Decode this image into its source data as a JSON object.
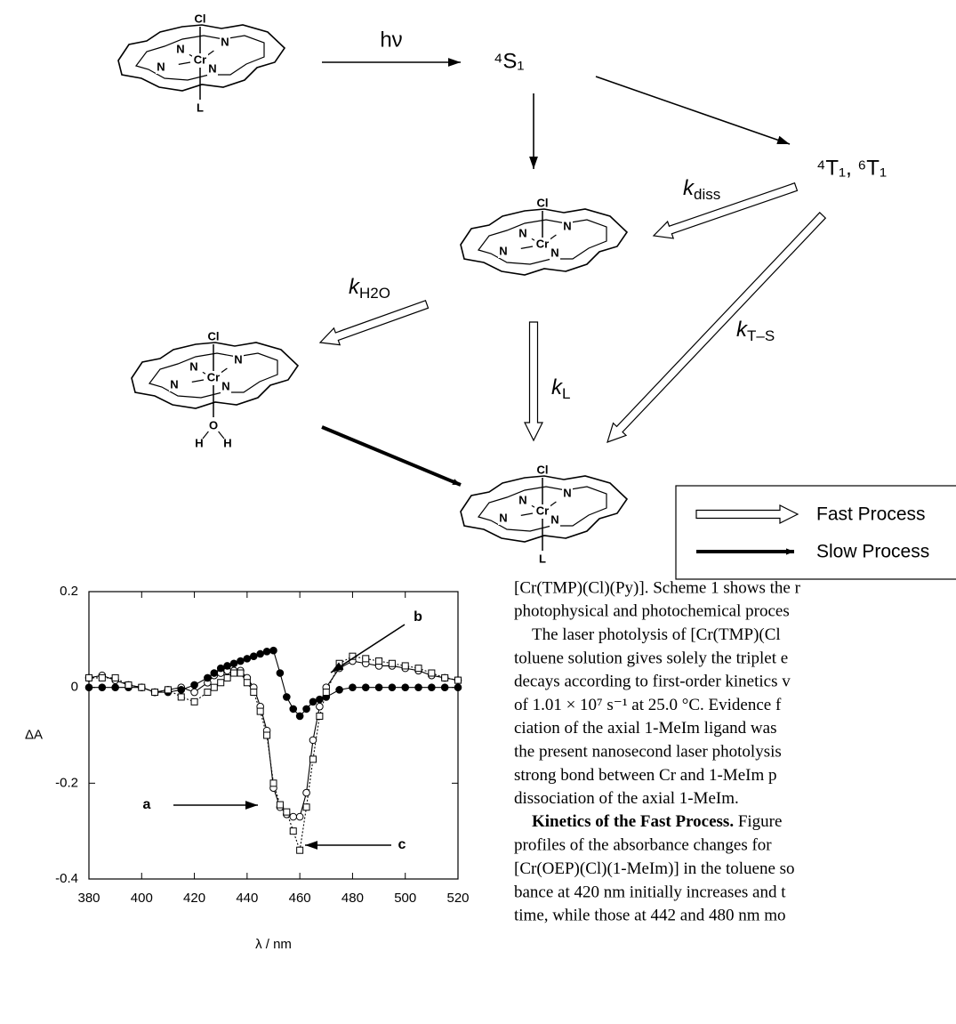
{
  "scheme": {
    "molecules": [
      {
        "top": "Cl",
        "nitrogens": [
          "N",
          "N",
          "N",
          "N"
        ],
        "metal": "Cr",
        "bottom": "L"
      },
      {
        "top": "Cl",
        "nitrogens": [
          "N",
          "N",
          "N",
          "N"
        ],
        "metal": "Cr"
      },
      {
        "top": "Cl",
        "nitrogens": [
          "N",
          "N",
          "N",
          "N"
        ],
        "metal": "Cr",
        "bottom": "O",
        "hydrogens": [
          "H",
          "H"
        ]
      },
      {
        "top": "Cl",
        "nitrogens": [
          "N",
          "N",
          "N",
          "N"
        ],
        "metal": "Cr",
        "bottom": "L"
      }
    ],
    "excitation": "hν",
    "states": [
      "⁴S₁",
      "⁴T₁, ⁶T₁"
    ],
    "rates": [
      {
        "symbol": "k",
        "subscript": "diss"
      },
      {
        "symbol": "k",
        "subscript": "H2O"
      },
      {
        "symbol": "k",
        "subscript": "L"
      },
      {
        "symbol": "k",
        "subscript": "T–S"
      }
    ],
    "legend": [
      "Fast Process",
      "Slow Process"
    ]
  },
  "chart_data": {
    "type": "line",
    "x_label": "λ / nm",
    "y_label": "ΔA",
    "x": [
      380,
      385,
      390,
      395,
      400,
      405,
      410,
      415,
      420,
      425,
      427.5,
      430,
      432.5,
      435,
      437.5,
      440,
      442.5,
      445,
      447.5,
      450,
      452.5,
      455,
      457.5,
      460,
      462.5,
      465,
      467.5,
      470,
      475,
      480,
      485,
      490,
      495,
      500,
      505,
      510,
      515,
      520
    ],
    "series": [
      {
        "name": "a",
        "color": "#000000",
        "marker": "circle-open",
        "line_style": "solid",
        "values": [
          0.02,
          0.025,
          0.015,
          0.005,
          0,
          -0.01,
          -0.005,
          0,
          -0.01,
          0.01,
          0.025,
          0.03,
          0.035,
          0.035,
          0.035,
          0.02,
          0,
          -0.04,
          -0.09,
          -0.21,
          -0.25,
          -0.265,
          -0.27,
          -0.27,
          -0.22,
          -0.11,
          -0.04,
          0,
          0.04,
          0.055,
          0.05,
          0.045,
          0.045,
          0.04,
          0.035,
          0.025,
          0.02,
          0.015
        ]
      },
      {
        "name": "b",
        "color": "#000000",
        "marker": "circle-filled",
        "line_style": "solid",
        "values": [
          0,
          0,
          0,
          0,
          0,
          -0.01,
          -0.01,
          -0.005,
          0.005,
          0.02,
          0.03,
          0.04,
          0.045,
          0.05,
          0.055,
          0.06,
          0.065,
          0.07,
          0.075,
          0.077,
          0.03,
          -0.02,
          -0.045,
          -0.06,
          -0.045,
          -0.03,
          -0.025,
          -0.02,
          -0.005,
          0,
          0,
          0,
          0,
          0,
          0,
          0,
          0,
          0
        ]
      },
      {
        "name": "c",
        "color": "#000000",
        "marker": "square-open",
        "line_style": "dotted",
        "values": [
          0.02,
          0.02,
          0.02,
          0.005,
          0,
          -0.01,
          -0.005,
          -0.02,
          -0.03,
          -0.01,
          0,
          0.01,
          0.02,
          0.03,
          0.03,
          0.01,
          -0.01,
          -0.05,
          -0.1,
          -0.2,
          -0.245,
          -0.26,
          -0.3,
          -0.34,
          -0.25,
          -0.15,
          -0.06,
          -0.01,
          0.05,
          0.065,
          0.06,
          0.055,
          0.05,
          0.045,
          0.04,
          0.03,
          0.02,
          0.015
        ]
      }
    ],
    "xlim": [
      380,
      520
    ],
    "ylim": [
      -0.4,
      0.2
    ],
    "xticks": [
      380,
      400,
      420,
      440,
      460,
      480,
      500,
      520
    ],
    "yticks": [
      -0.4,
      -0.2,
      0,
      0.2
    ]
  },
  "text": {
    "lines": [
      "[Cr(TMP)(Cl)(Py)]. Scheme 1 shows the r",
      "photophysical and photochemical proces",
      "The laser photolysis of [Cr(TMP)(Cl",
      "toluene solution gives solely the triplet e",
      "decays according to first-order kinetics v",
      "of 1.01 × 10⁷ s⁻¹ at 25.0 °C. Evidence f",
      "ciation of the axial 1-MeIm ligand was",
      "the present nanosecond laser photolysis",
      "strong bond between Cr and 1-MeIm p",
      "dissociation of the axial 1-MeIm.",
      {
        "bold": "Kinetics of the Fast Process.",
        "rest": " Figure"
      },
      "profiles of the absorbance changes for",
      "[Cr(OEP)(Cl)(1-MeIm)] in the toluene so",
      "bance at 420 nm initially increases and t",
      "time, while those at 442 and 480 nm mo"
    ]
  }
}
